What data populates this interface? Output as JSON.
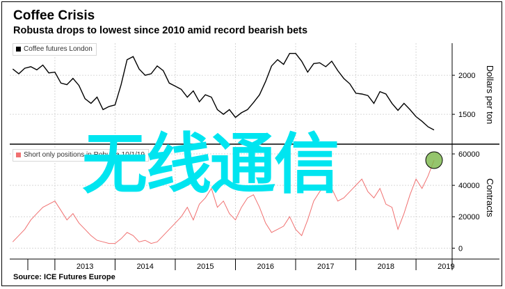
{
  "title": "Coffee Crisis",
  "subtitle": "Robusta drops to lowest since 2010 amid record bearish bets",
  "source": "Source: ICE Futures Europe",
  "watermark": "无线通信",
  "colors": {
    "top_series": "#000000",
    "bottom_series": "#f07070",
    "marker_fill": "#7ab648",
    "marker_stroke": "#e07070",
    "watermark": "#00e5f0"
  },
  "chart_data": [
    {
      "type": "line",
      "panel": "top",
      "ylabel": "Dollars per ton",
      "yticks": [
        "1500",
        "2000"
      ],
      "ylim": [
        1180,
        2340
      ],
      "legend": "top-left",
      "series": [
        {
          "name": "Coffee futures London",
          "x": [
            2012.3,
            2012.4,
            2012.5,
            2012.6,
            2012.7,
            2012.8,
            2012.9,
            2013.0,
            2013.1,
            2013.2,
            2013.3,
            2013.4,
            2013.5,
            2013.6,
            2013.7,
            2013.8,
            2013.9,
            2014.0,
            2014.1,
            2014.2,
            2014.3,
            2014.4,
            2014.5,
            2014.6,
            2014.7,
            2014.8,
            2014.9,
            2015.0,
            2015.1,
            2015.2,
            2015.3,
            2015.4,
            2015.5,
            2015.6,
            2015.7,
            2015.8,
            2015.9,
            2016.0,
            2016.1,
            2016.2,
            2016.3,
            2016.4,
            2016.5,
            2016.6,
            2016.7,
            2016.8,
            2016.9,
            2017.0,
            2017.1,
            2017.2,
            2017.3,
            2017.4,
            2017.5,
            2017.6,
            2017.7,
            2017.8,
            2017.9,
            2018.0,
            2018.1,
            2018.2,
            2018.3,
            2018.4,
            2018.5,
            2018.6,
            2018.7,
            2018.8,
            2018.9,
            2019.0,
            2019.1,
            2019.2,
            2019.3
          ],
          "values": [
            2080,
            2020,
            2090,
            2110,
            2070,
            2130,
            2030,
            2040,
            1900,
            1880,
            1960,
            1870,
            1700,
            1640,
            1720,
            1560,
            1600,
            1620,
            1880,
            2200,
            2240,
            2080,
            2000,
            2020,
            2120,
            2060,
            1900,
            1860,
            1820,
            1720,
            1800,
            1660,
            1750,
            1720,
            1560,
            1500,
            1560,
            1460,
            1520,
            1560,
            1650,
            1750,
            1920,
            2120,
            2200,
            2140,
            2280,
            2280,
            2180,
            2040,
            2150,
            2160,
            2110,
            2180,
            2060,
            1960,
            1890,
            1770,
            1760,
            1740,
            1640,
            1790,
            1760,
            1640,
            1550,
            1640,
            1560,
            1470,
            1410,
            1340,
            1300
          ]
        }
      ]
    },
    {
      "type": "line",
      "panel": "bottom",
      "ylabel": "Contracts",
      "yticks": [
        "0",
        "20000",
        "40000",
        "60000"
      ],
      "ylim": [
        -2500,
        64000
      ],
      "legend": "top-left",
      "series": [
        {
          "name": "Short only positions in Robusta 10/1/19",
          "x": [
            2012.3,
            2012.4,
            2012.5,
            2012.6,
            2012.7,
            2012.8,
            2012.9,
            2013.0,
            2013.1,
            2013.2,
            2013.3,
            2013.4,
            2013.5,
            2013.6,
            2013.7,
            2013.8,
            2013.9,
            2014.0,
            2014.1,
            2014.2,
            2014.3,
            2014.4,
            2014.5,
            2014.6,
            2014.7,
            2014.8,
            2014.9,
            2015.0,
            2015.1,
            2015.2,
            2015.3,
            2015.4,
            2015.5,
            2015.6,
            2015.7,
            2015.8,
            2015.9,
            2016.0,
            2016.1,
            2016.2,
            2016.3,
            2016.4,
            2016.5,
            2016.6,
            2016.7,
            2016.8,
            2016.9,
            2017.0,
            2017.1,
            2017.2,
            2017.3,
            2017.4,
            2017.5,
            2017.6,
            2017.7,
            2017.8,
            2017.9,
            2018.0,
            2018.1,
            2018.2,
            2018.3,
            2018.4,
            2018.5,
            2018.6,
            2018.7,
            2018.8,
            2018.9,
            2019.0,
            2019.1,
            2019.2,
            2019.3
          ],
          "values": [
            4000,
            8000,
            12000,
            18000,
            22000,
            26000,
            28000,
            30000,
            24000,
            18000,
            22000,
            16000,
            12000,
            8000,
            5000,
            4000,
            3000,
            3000,
            6000,
            10000,
            8000,
            4000,
            5000,
            3000,
            4000,
            8000,
            12000,
            16000,
            20000,
            26000,
            18000,
            28000,
            32000,
            38000,
            26000,
            30000,
            22000,
            18000,
            26000,
            32000,
            34000,
            26000,
            16000,
            10000,
            12000,
            14000,
            20000,
            12000,
            8000,
            18000,
            30000,
            36000,
            40000,
            38000,
            30000,
            32000,
            36000,
            40000,
            44000,
            36000,
            32000,
            38000,
            28000,
            26000,
            12000,
            22000,
            34000,
            44000,
            38000,
            46000,
            56000
          ]
        }
      ],
      "annotation_point": {
        "x": 2019.3,
        "y": 56000
      }
    }
  ],
  "x_axis": {
    "ticks": [
      "2013",
      "2014",
      "2015",
      "2016",
      "2017",
      "2018",
      "2019"
    ]
  }
}
